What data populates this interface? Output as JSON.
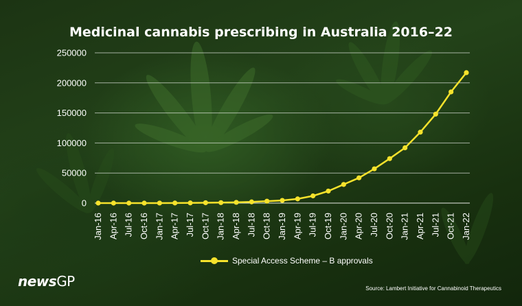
{
  "title": "Medicinal cannabis prescribing in Australia 2016–22",
  "chart_data": {
    "type": "line",
    "title": "Medicinal cannabis prescribing in Australia 2016–22",
    "xlabel": "",
    "ylabel": "",
    "ylim": [
      0,
      250000
    ],
    "yticks": [
      0,
      50000,
      100000,
      150000,
      200000,
      250000
    ],
    "ytick_labels": [
      "0",
      "50000",
      "100000",
      "150000",
      "200000",
      "250000"
    ],
    "grid": "horizontal",
    "legend_position": "bottom-center",
    "categories": [
      "Jan-16",
      "Apr-16",
      "Jul-16",
      "Oct-16",
      "Jan-17",
      "Apr-17",
      "Jul-17",
      "Oct-17",
      "Jan-18",
      "Apr-18",
      "Jul-18",
      "Oct-18",
      "Jan-19",
      "Apr-19",
      "Jul-19",
      "Oct-19",
      "Jan-20",
      "Apr-20",
      "Jul-20",
      "Oct-20",
      "Jan-21",
      "Apr-21",
      "Jul-21",
      "Oct-21",
      "Jan-22"
    ],
    "series": [
      {
        "name": "Special Access Scheme – B approvals",
        "color": "#f6e22c",
        "values": [
          0,
          0,
          0,
          0,
          50,
          150,
          300,
          600,
          800,
          1200,
          2000,
          3200,
          4500,
          7000,
          12000,
          20000,
          31000,
          42000,
          57000,
          74000,
          92000,
          118000,
          148000,
          185000,
          217000
        ]
      }
    ]
  },
  "legend": {
    "label": "Special Access Scheme – B approvals"
  },
  "source": "Source: Lambert Initiative for Cannabinoid Therapeutics",
  "logo": {
    "news": "news",
    "gp": "GP"
  }
}
